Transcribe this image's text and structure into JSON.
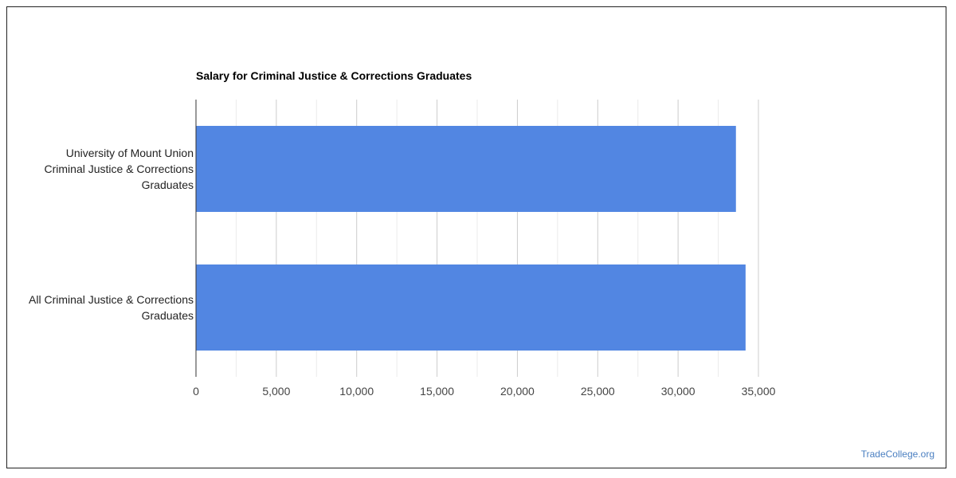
{
  "chart_data": {
    "type": "bar",
    "orientation": "horizontal",
    "title": "Salary for Criminal Justice & Corrections Graduates",
    "categories": [
      [
        "University of Mount Union",
        "Criminal Justice & Corrections",
        "Graduates"
      ],
      [
        "All Criminal Justice & Corrections",
        "Graduates"
      ]
    ],
    "values": [
      33600,
      34200
    ],
    "xlim": [
      0,
      35000
    ],
    "x_ticks": [
      0,
      5000,
      10000,
      15000,
      20000,
      25000,
      30000,
      35000
    ],
    "x_tick_labels": [
      "0",
      "5,000",
      "10,000",
      "15,000",
      "20,000",
      "25,000",
      "30,000",
      "35,000"
    ],
    "xlabel": "",
    "ylabel": "",
    "grid": true,
    "legend": "none",
    "bar_color": "#5286e2"
  },
  "watermark": "TradeCollege.org"
}
